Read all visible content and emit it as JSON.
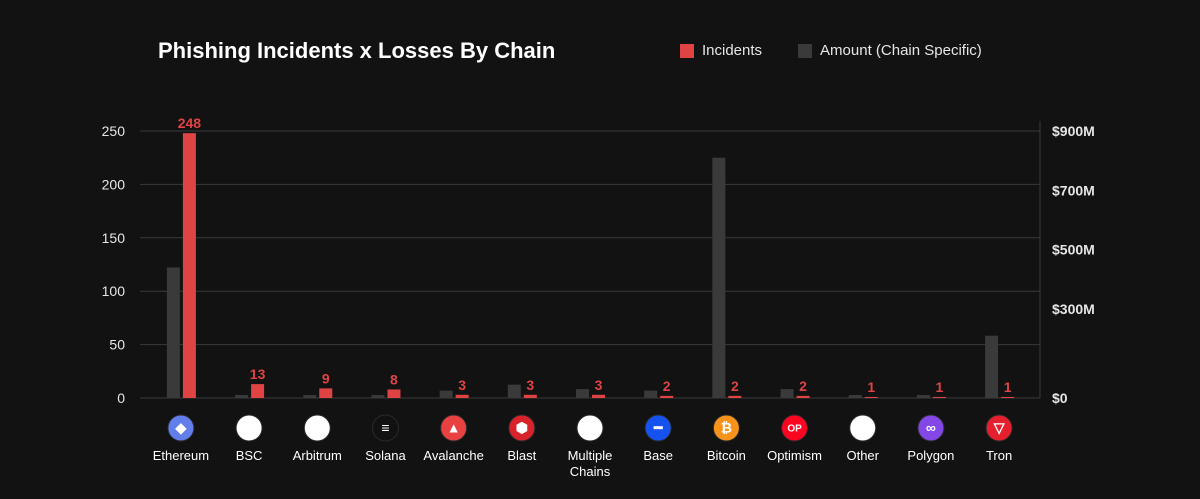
{
  "chart_data": {
    "type": "bar",
    "title": "Phishing Incidents x Losses By Chain",
    "categories": [
      "Ethereum",
      "BSC",
      "Arbitrum",
      "Solana",
      "Avalanche",
      "Blast",
      "Multiple Chains",
      "Base",
      "Bitcoin",
      "Optimism",
      "Other",
      "Polygon",
      "Tron"
    ],
    "series": [
      {
        "name": "Incidents",
        "axis": "left",
        "color": "#e04343",
        "values": [
          248,
          13,
          9,
          8,
          3,
          3,
          3,
          2,
          2,
          2,
          1,
          1,
          1
        ],
        "labels": [
          "248",
          "13",
          "9",
          "8",
          "3",
          "3",
          "3",
          "2",
          "2",
          "2",
          "1",
          "1",
          "1"
        ]
      },
      {
        "name": "Amount (Chain Specific)",
        "axis": "right",
        "color": "#3a3a3a",
        "values": [
          440,
          10,
          10,
          10,
          25,
          45,
          30,
          25,
          810,
          30,
          10,
          10,
          210
        ]
      }
    ],
    "y_left": {
      "ylim": [
        0,
        250
      ],
      "ticks": [
        "0",
        "50",
        "100",
        "150",
        "200",
        "250"
      ],
      "tick_values": [
        0,
        50,
        100,
        150,
        200,
        250
      ]
    },
    "y_right": {
      "ylim": [
        0,
        900
      ],
      "unit": "$M",
      "ticks": [
        "$0",
        "$300M",
        "$500M",
        "$700M",
        "$900M"
      ],
      "tick_values": [
        0,
        300,
        500,
        700,
        900
      ]
    },
    "grid": true,
    "legend_position": "top-right",
    "chain_icons": [
      {
        "name": "ethereum-icon",
        "color": "#627eea",
        "glyph": "◆"
      },
      {
        "name": "bsc-icon",
        "color": "#ffffff",
        "glyph": "▮"
      },
      {
        "name": "arbitrum-icon",
        "color": "#ffffff",
        "glyph": "/"
      },
      {
        "name": "solana-icon",
        "color": "#111111",
        "glyph": "≡"
      },
      {
        "name": "avalanche-icon",
        "color": "#e84142",
        "glyph": "▲"
      },
      {
        "name": "blast-icon",
        "color": "#d8232a",
        "glyph": "⬢"
      },
      {
        "name": "multiple-chains-icon",
        "color": "#ffffff",
        "glyph": "∞"
      },
      {
        "name": "base-icon",
        "color": "#1652f0",
        "glyph": "━"
      },
      {
        "name": "bitcoin-icon",
        "color": "#f7931a",
        "glyph": "₿"
      },
      {
        "name": "optimism-icon",
        "color": "#ff0420",
        "glyph": "OP"
      },
      {
        "name": "other-icon",
        "color": "#ffffff",
        "glyph": "•••"
      },
      {
        "name": "polygon-icon",
        "color": "#8247e5",
        "glyph": "∞"
      },
      {
        "name": "tron-icon",
        "color": "#e5202e",
        "glyph": "▽"
      }
    ]
  },
  "legend": {
    "incidents_label": "Incidents",
    "amount_label": "Amount (Chain Specific)"
  }
}
